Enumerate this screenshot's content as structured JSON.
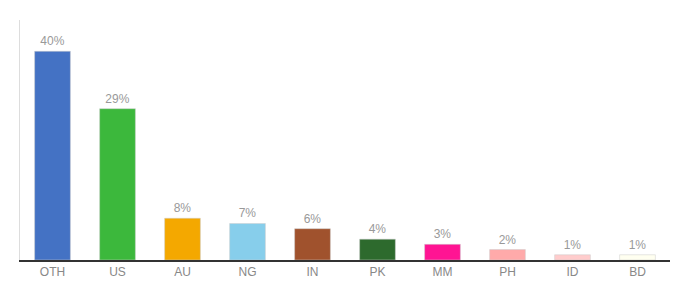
{
  "chart_data": {
    "type": "bar",
    "categories": [
      "OTH",
      "US",
      "AU",
      "NG",
      "IN",
      "PK",
      "MM",
      "PH",
      "ID",
      "BD"
    ],
    "values": [
      40,
      29,
      8,
      7,
      6,
      4,
      3,
      2,
      1,
      1
    ],
    "value_labels": [
      "40%",
      "29%",
      "8%",
      "7%",
      "6%",
      "4%",
      "3%",
      "2%",
      "1%",
      "1%"
    ],
    "colors": [
      "#4472c4",
      "#3cb83c",
      "#f4a800",
      "#87ceeb",
      "#a0522d",
      "#2d6a2d",
      "#ff1493",
      "#ffaaaa",
      "#ffcccc",
      "#fffff0"
    ],
    "ylim": [
      0,
      46
    ],
    "grid": false,
    "data_labels": true,
    "tick_labels": "x"
  }
}
